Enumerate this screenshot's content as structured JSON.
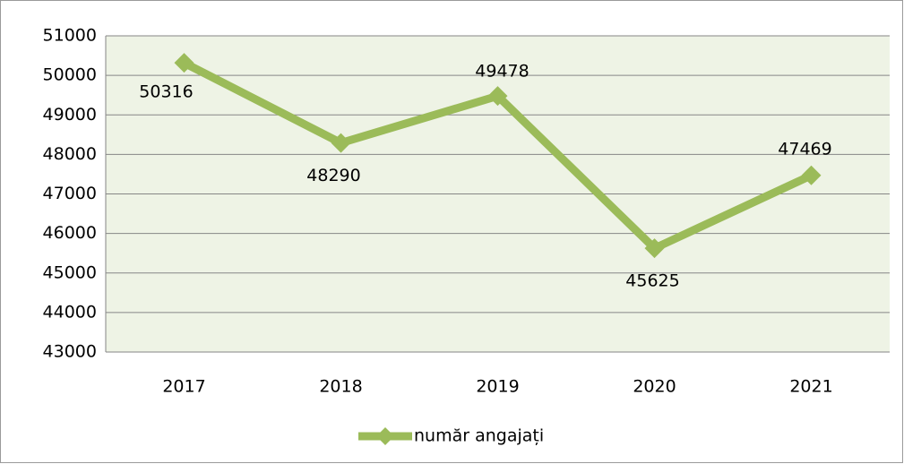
{
  "chart_data": {
    "type": "line",
    "categories": [
      "2017",
      "2018",
      "2019",
      "2020",
      "2021"
    ],
    "series": [
      {
        "name": "număr angajați",
        "color": "#9bbb59",
        "values": [
          50316,
          48290,
          49478,
          45625,
          47469
        ]
      }
    ],
    "ylim": [
      43000,
      51000
    ],
    "yticks": [
      43000,
      44000,
      45000,
      46000,
      47000,
      48000,
      49000,
      50000,
      51000
    ],
    "grid": true,
    "legend": "bottom"
  }
}
